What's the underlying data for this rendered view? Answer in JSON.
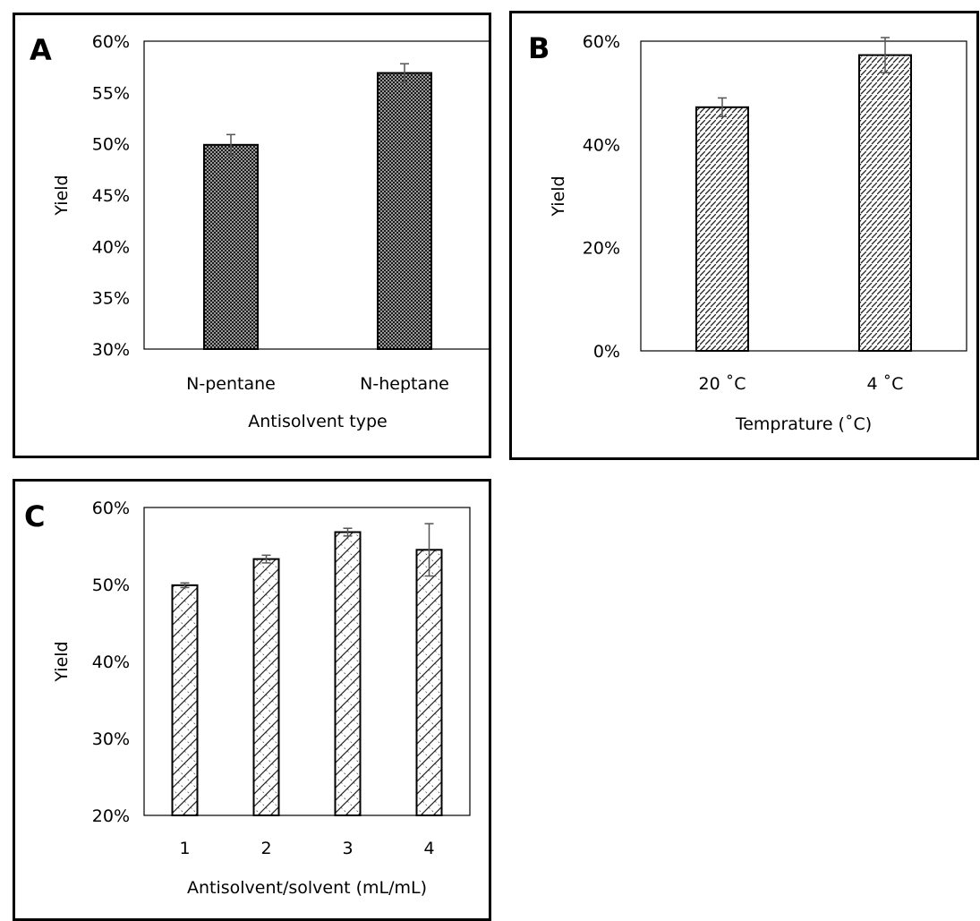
{
  "chart_data": [
    {
      "panel_label": "A",
      "type": "bar",
      "categories": [
        "N-pentane",
        "N-heptane"
      ],
      "values": [
        0.499,
        0.569
      ],
      "errors": [
        0.01,
        0.009
      ],
      "xlabel": "Antisolvent type",
      "ylabel": "Yield",
      "ylim": [
        0.3,
        0.6
      ],
      "yticks": [
        0.3,
        0.35,
        0.4,
        0.45,
        0.5,
        0.55,
        0.6
      ],
      "ytick_labels": [
        "30%",
        "35%",
        "40%",
        "45%",
        "50%",
        "55%",
        "60%"
      ],
      "bar_pattern": "dots",
      "grid": false
    },
    {
      "panel_label": "B",
      "type": "bar",
      "categories": [
        "20 ˚C",
        "4 ˚C"
      ],
      "values": [
        0.472,
        0.573
      ],
      "errors": [
        0.018,
        0.034
      ],
      "xlabel": "Temprature (˚C)",
      "ylabel": "Yield",
      "ylim": [
        0.0,
        0.6
      ],
      "yticks": [
        0.0,
        0.2,
        0.4,
        0.6
      ],
      "ytick_labels": [
        "0%",
        "20%",
        "40%",
        "60%"
      ],
      "bar_pattern": "fine-diagonal",
      "grid": false
    },
    {
      "panel_label": "C",
      "type": "bar",
      "categories": [
        "1",
        "2",
        "3",
        "4"
      ],
      "values": [
        0.499,
        0.533,
        0.568,
        0.545
      ],
      "errors": [
        0.003,
        0.005,
        0.005,
        0.034
      ],
      "xlabel": "Antisolvent/solvent (mL/mL)",
      "ylabel": "Yield",
      "ylim": [
        0.2,
        0.6
      ],
      "yticks": [
        0.2,
        0.3,
        0.4,
        0.5,
        0.6
      ],
      "ytick_labels": [
        "20%",
        "30%",
        "40%",
        "50%",
        "60%"
      ],
      "bar_pattern": "diagonal-crosshatch",
      "grid": false
    }
  ]
}
